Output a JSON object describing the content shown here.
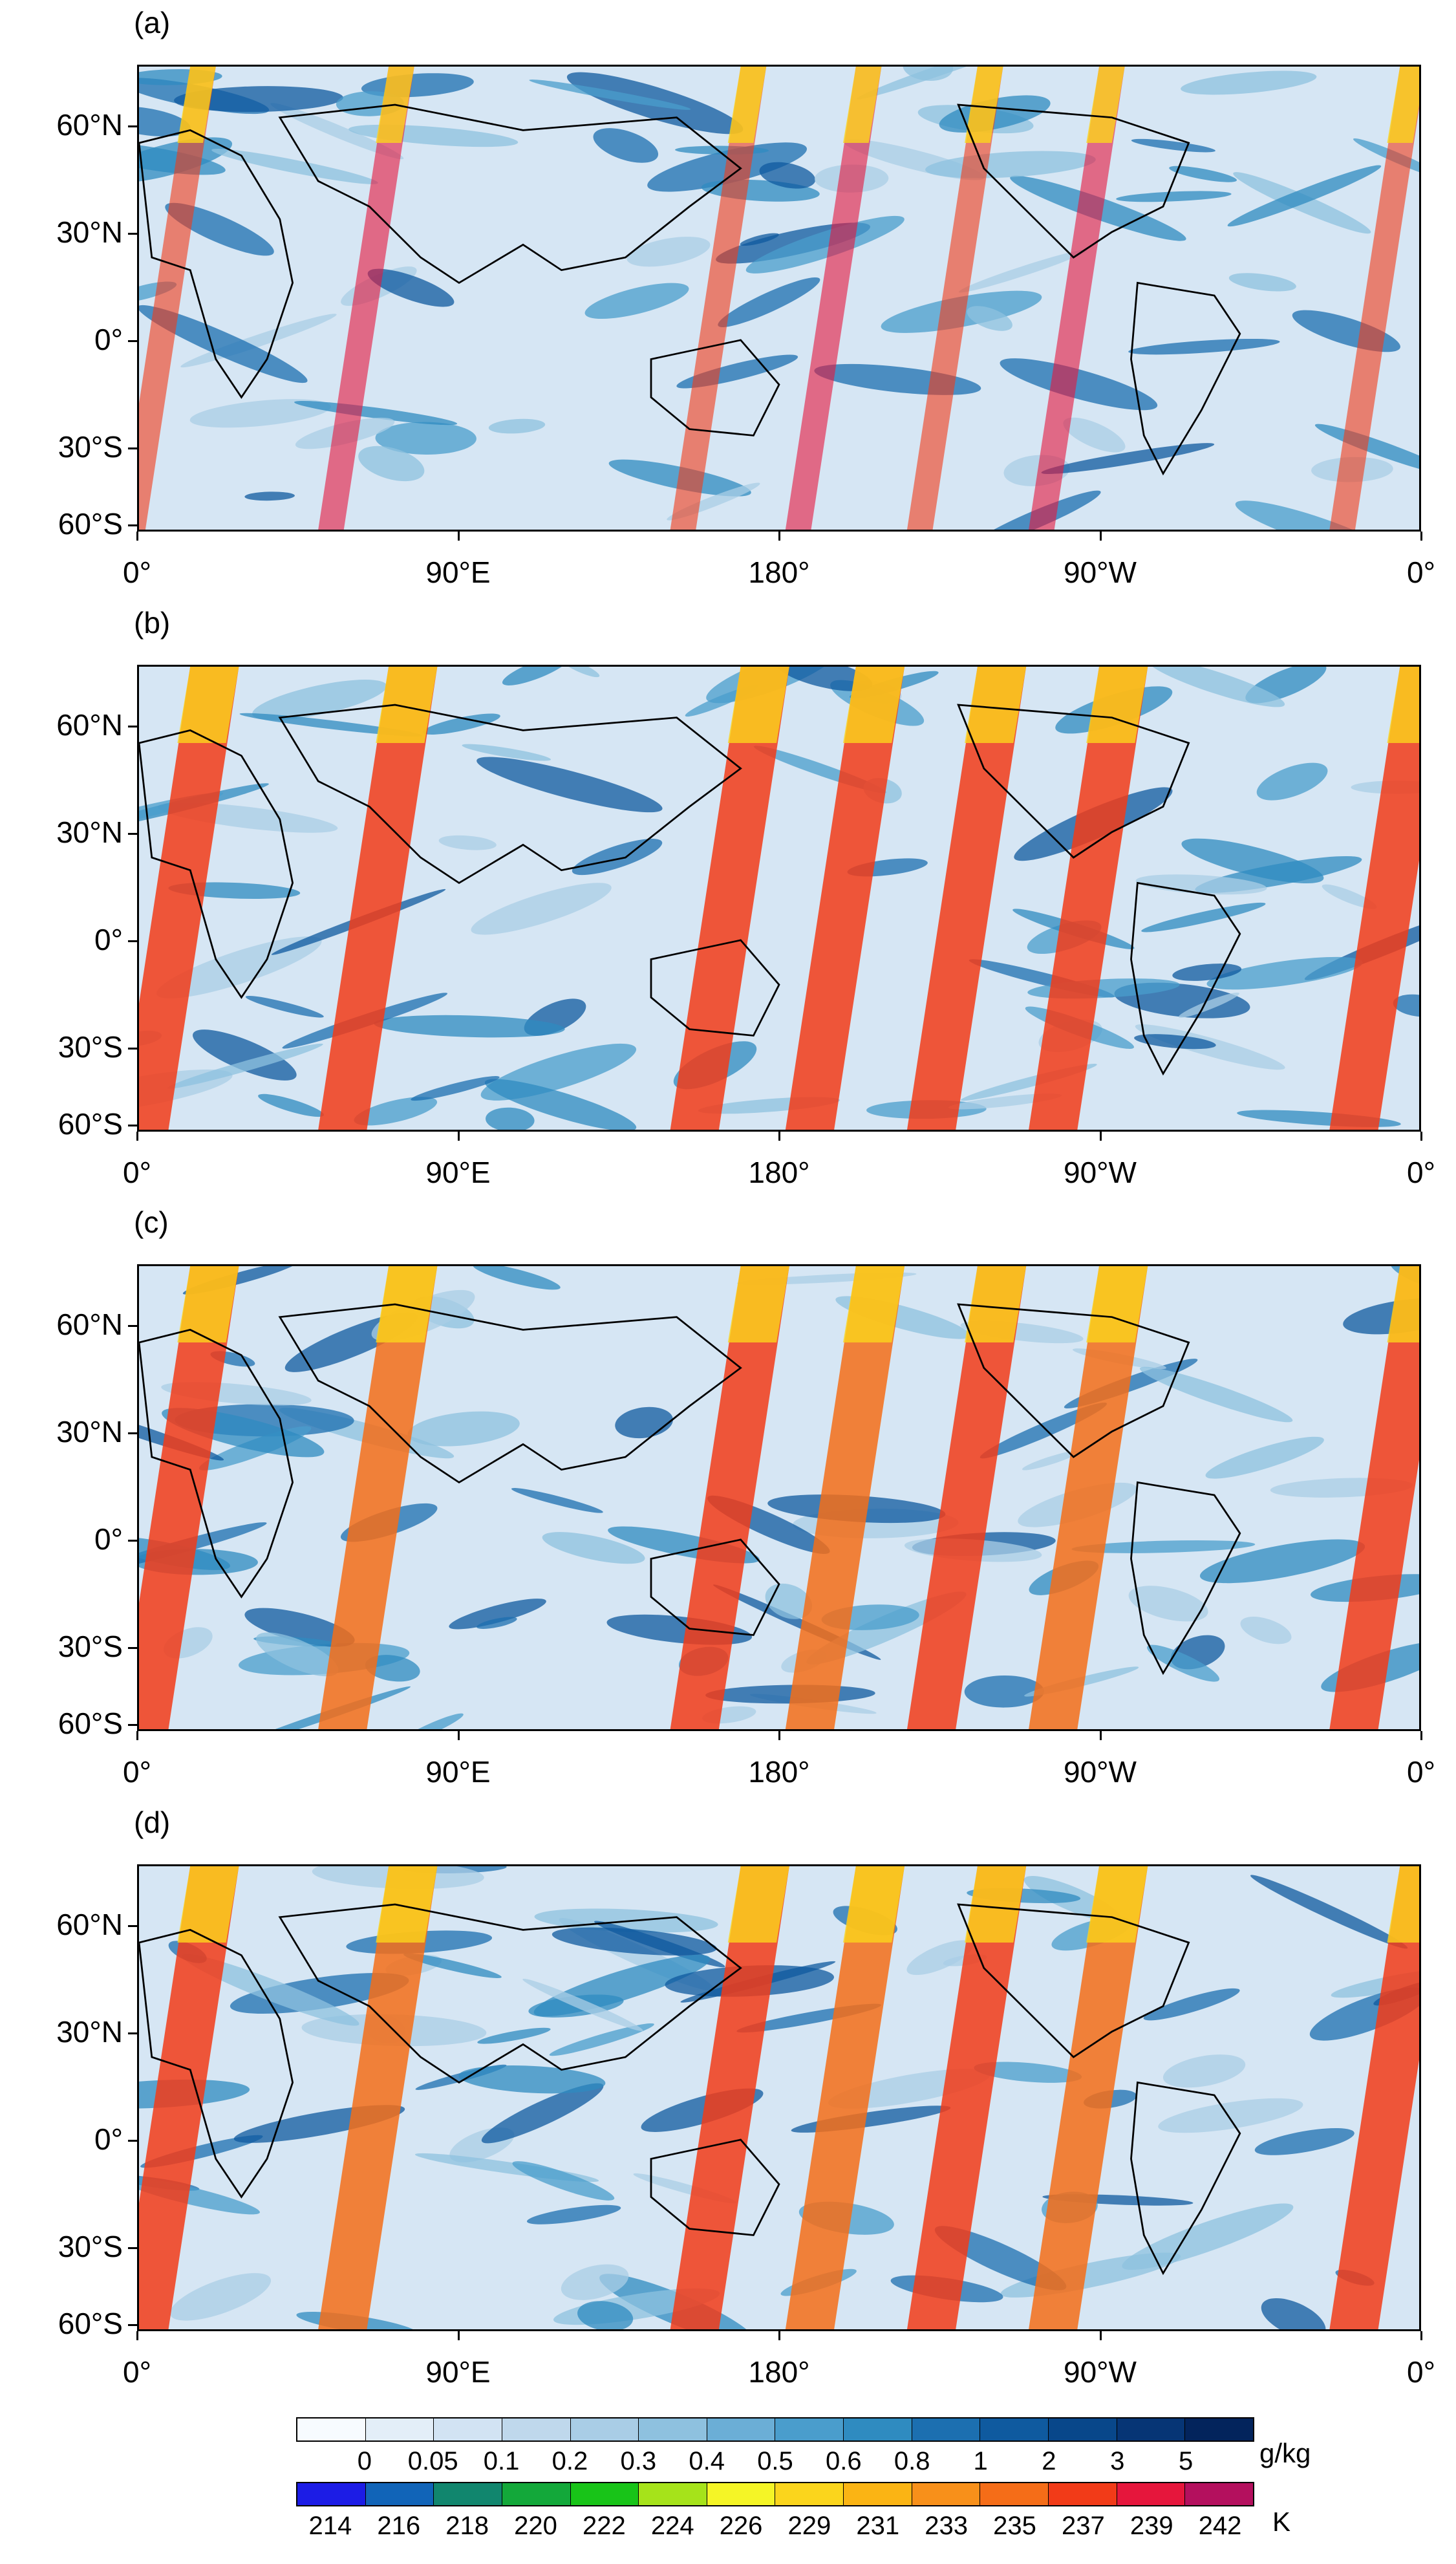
{
  "panels": [
    {
      "label": "(a)",
      "pattern": "a"
    },
    {
      "label": "(b)",
      "pattern": "b"
    },
    {
      "label": "(c)",
      "pattern": "c"
    },
    {
      "label": "(d)",
      "pattern": "d"
    }
  ],
  "y_axis_labels": [
    "60°N",
    "30°N",
    "0°",
    "30°S",
    "60°S"
  ],
  "x_axis_labels": [
    "0°",
    "90°E",
    "180°",
    "90°W",
    "0°"
  ],
  "colorbar_mixing_ratio": {
    "unit": "g/kg",
    "tick_labels": [
      "0",
      "0.05",
      "0.1",
      "0.2",
      "0.3",
      "0.4",
      "0.5",
      "0.6",
      "0.8",
      "1",
      "2",
      "3",
      "5"
    ],
    "colors": [
      "#f7fbff",
      "#e3eef8",
      "#d2e3f3",
      "#bfd8ec",
      "#a9cde6",
      "#8ec1df",
      "#6baed6",
      "#4a9dcc",
      "#2f8bc0",
      "#1c6fb0",
      "#0f5a9f",
      "#08478a",
      "#063575",
      "#03245c"
    ]
  },
  "colorbar_temperature": {
    "unit": "K",
    "tick_labels": [
      "214",
      "216",
      "218",
      "220",
      "222",
      "224",
      "226",
      "229",
      "231",
      "233",
      "235",
      "237",
      "239",
      "242"
    ],
    "colors": [
      "#1c1ce6",
      "#1164b8",
      "#11866e",
      "#13a83a",
      "#18c418",
      "#a6e31a",
      "#f5f526",
      "#fbd51c",
      "#fbb414",
      "#f8901a",
      "#f56d18",
      "#f23b18",
      "#e6163c",
      "#b4105e"
    ]
  }
}
